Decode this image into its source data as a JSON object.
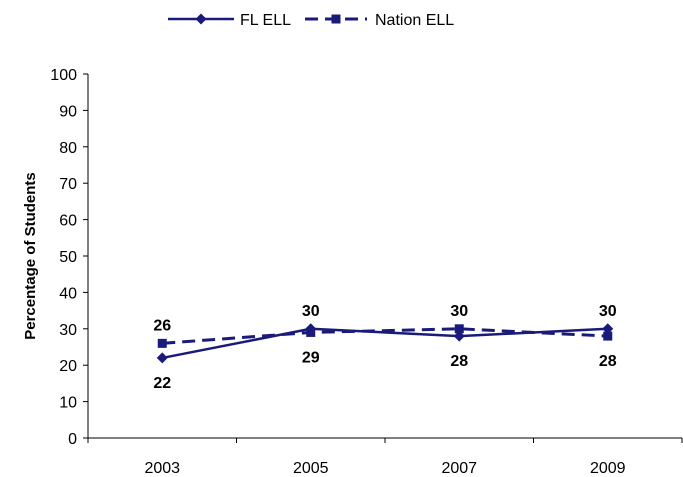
{
  "chart_data": {
    "type": "line",
    "categories": [
      "2003",
      "2005",
      "2007",
      "2009"
    ],
    "series": [
      {
        "name": "FL ELL",
        "values": [
          22,
          30,
          28,
          30
        ],
        "color": "#1a1a7a",
        "line_style": "solid",
        "marker": "diamond"
      },
      {
        "name": "Nation ELL",
        "values": [
          26,
          29,
          30,
          28
        ],
        "color": "#1a1a7a",
        "line_style": "dashed",
        "marker": "square"
      }
    ],
    "title": "",
    "xlabel": "",
    "ylabel": "Percentage of Students",
    "ylim": [
      0,
      100
    ],
    "yticks": [
      "0",
      "10",
      "20",
      "30",
      "40",
      "50",
      "60",
      "70",
      "80",
      "90",
      "100"
    ],
    "grid": false,
    "legend_position": "top-center"
  }
}
